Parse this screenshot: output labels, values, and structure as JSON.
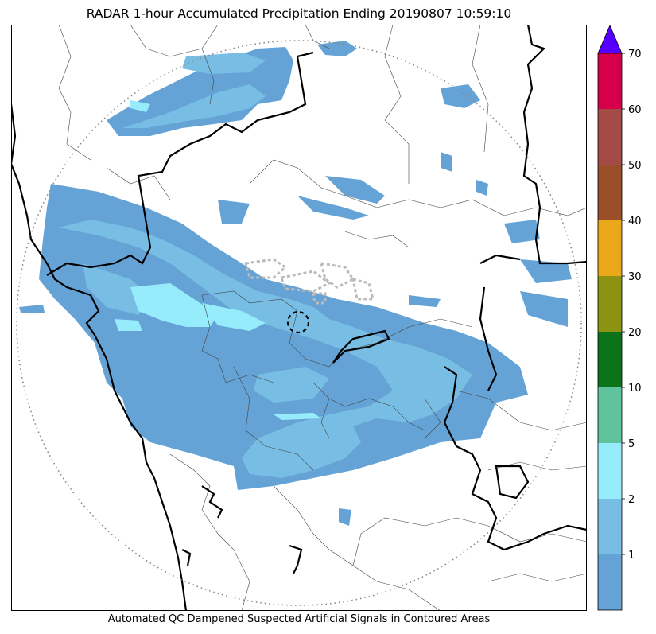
{
  "title": "RADAR 1-hour Accumulated Precipitation Ending 20190807 10:59:10",
  "footer_note": "Automated QC Dampened Suspected Artificial Signals in Contoured Areas",
  "colorbar": {
    "ticks": [
      "1",
      "2",
      "5",
      "10",
      "20",
      "30",
      "40",
      "50",
      "60",
      "70"
    ],
    "bins": [
      {
        "color": "#65a3d6",
        "range": [
          0,
          1
        ]
      },
      {
        "color": "#78bee4",
        "range": [
          1,
          2
        ]
      },
      {
        "color": "#96ecfb",
        "range": [
          2,
          5
        ]
      },
      {
        "color": "#5fc49e",
        "range": [
          5,
          10
        ]
      },
      {
        "color": "#0c731a",
        "range": [
          10,
          20
        ]
      },
      {
        "color": "#8c9312",
        "range": [
          20,
          30
        ]
      },
      {
        "color": "#e8a81a",
        "range": [
          30,
          40
        ]
      },
      {
        "color": "#9a4f28",
        "range": [
          40,
          50
        ]
      },
      {
        "color": "#a44a47",
        "range": [
          50,
          60
        ]
      },
      {
        "color": "#d6004a",
        "range": [
          60,
          70
        ]
      }
    ],
    "extend_color": "#5500ff"
  },
  "map": {
    "range_ring": "dotted-circle",
    "radar_marker": "dashed-circle",
    "colors": {
      "light_rain": "#65a3d6",
      "moderate_rain": "#78bee4",
      "heavy_rain": "#96ecfb",
      "border": "#000000",
      "district_border": "#444444"
    }
  }
}
